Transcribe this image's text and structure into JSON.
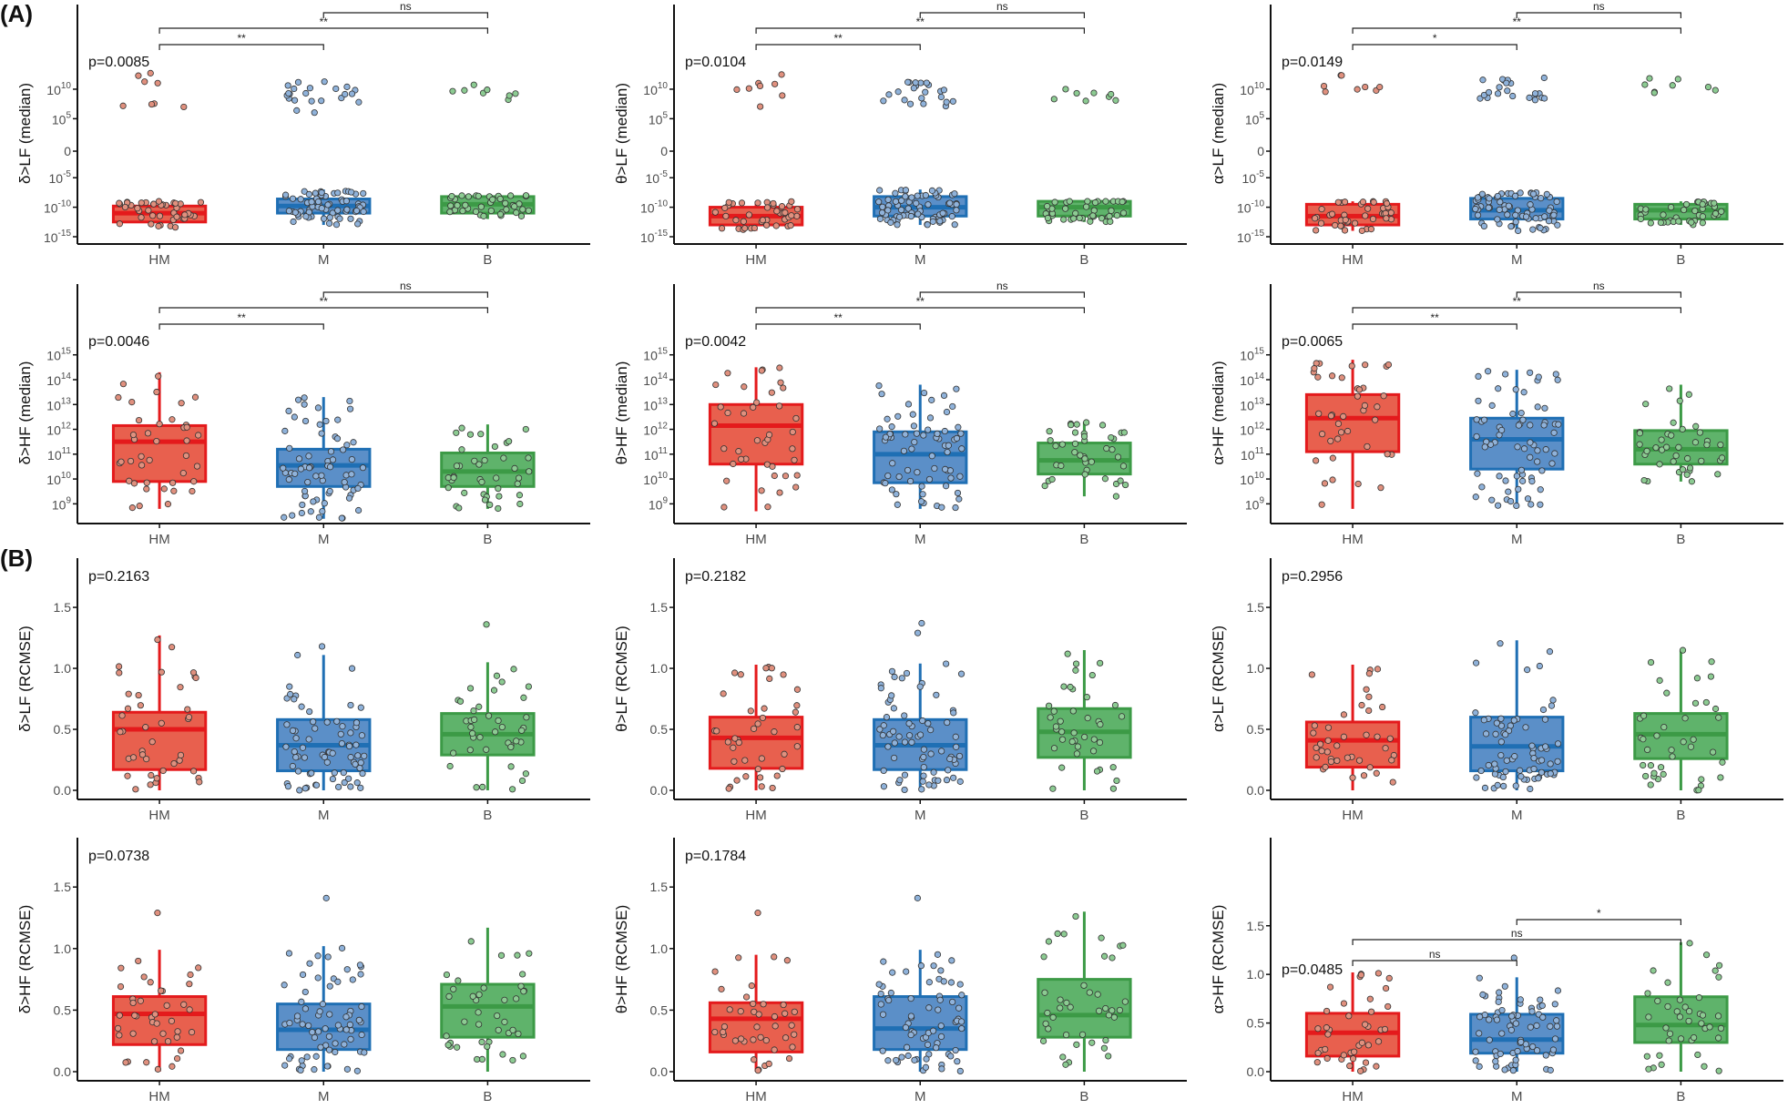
{
  "figure": {
    "section_labels": [
      "(A)",
      "(B)"
    ]
  },
  "colors": {
    "HM": {
      "fill": "#E8604E",
      "line": "#E41A1C",
      "dot": "#E0907E"
    },
    "M": {
      "fill": "#5B8FC8",
      "line": "#1F6FB4",
      "dot": "#8FB2DA"
    },
    "B": {
      "fill": "#5FB36B",
      "line": "#3C9A46",
      "dot": "#8CCB92"
    },
    "axis": "#111111",
    "tick_label": "#4D4D4D"
  },
  "chart_data": [
    {
      "type": "box",
      "section": "A",
      "ylabel": "δ>LF (median)",
      "scale": "symlog-decades",
      "yticks": [
        "10^-15",
        "10^-10",
        "10^-5",
        "0",
        "10^5",
        "10^10"
      ],
      "categories": [
        "HM",
        "M",
        "B"
      ],
      "pvalue": "p=0.0085",
      "boxes": [
        {
          "group": "HM",
          "q1": -12.5,
          "median": -11,
          "q3": -9.8,
          "wlo": -13.5,
          "whi": -9
        },
        {
          "group": "M",
          "q1": -11,
          "median": -9.8,
          "q3": -8.6,
          "wlo": -13,
          "whi": -7
        },
        {
          "group": "B",
          "q1": -11,
          "median": -9.5,
          "q3": -8.2,
          "wlo": -12,
          "whi": -8
        }
      ],
      "outliers": [
        {
          "group": "HM",
          "range": [
            6,
            13
          ]
        },
        {
          "group": "M",
          "range": [
            6,
            11.5
          ]
        },
        {
          "group": "B",
          "range": [
            8,
            11
          ]
        }
      ],
      "comparisons": [
        {
          "pair": [
            "HM",
            "M"
          ],
          "label": "**"
        },
        {
          "pair": [
            "HM",
            "B"
          ],
          "label": "**"
        },
        {
          "pair": [
            "M",
            "B"
          ],
          "label": "ns"
        }
      ]
    },
    {
      "type": "box",
      "section": "A",
      "ylabel": "θ>LF (median)",
      "scale": "symlog-decades",
      "yticks": [
        "10^-15",
        "10^-10",
        "10^-5",
        "0",
        "10^5",
        "10^10"
      ],
      "categories": [
        "HM",
        "M",
        "B"
      ],
      "pvalue": "p=0.0104",
      "boxes": [
        {
          "group": "HM",
          "q1": -13,
          "median": -11.5,
          "q3": -10,
          "wlo": -14,
          "whi": -9
        },
        {
          "group": "M",
          "q1": -11.5,
          "median": -10,
          "q3": -8.2,
          "wlo": -13,
          "whi": -7
        },
        {
          "group": "B",
          "q1": -11.5,
          "median": -10,
          "q3": -9,
          "wlo": -12.5,
          "whi": -9
        }
      ],
      "outliers": [
        {
          "group": "HM",
          "range": [
            7,
            13
          ]
        },
        {
          "group": "M",
          "range": [
            7,
            11.5
          ]
        },
        {
          "group": "B",
          "range": [
            8,
            11
          ]
        }
      ],
      "comparisons": [
        {
          "pair": [
            "HM",
            "M"
          ],
          "label": "**"
        },
        {
          "pair": [
            "HM",
            "B"
          ],
          "label": "**"
        },
        {
          "pair": [
            "M",
            "B"
          ],
          "label": "ns"
        }
      ]
    },
    {
      "type": "box",
      "section": "A",
      "ylabel": "α>LF (median)",
      "scale": "symlog-decades",
      "yticks": [
        "10^-15",
        "10^-10",
        "10^-5",
        "0",
        "10^5",
        "10^10"
      ],
      "categories": [
        "HM",
        "M",
        "B"
      ],
      "pvalue": "p=0.0149",
      "boxes": [
        {
          "group": "HM",
          "q1": -13,
          "median": -11.5,
          "q3": -9.5,
          "wlo": -14,
          "whi": -9
        },
        {
          "group": "M",
          "q1": -12,
          "median": -10.5,
          "q3": -8.5,
          "wlo": -14,
          "whi": -7.5
        },
        {
          "group": "B",
          "q1": -12,
          "median": -10.5,
          "q3": -9.5,
          "wlo": -13,
          "whi": -9
        }
      ],
      "outliers": [
        {
          "group": "HM",
          "range": [
            9,
            12.5
          ]
        },
        {
          "group": "M",
          "range": [
            8,
            12
          ]
        },
        {
          "group": "B",
          "range": [
            9,
            12
          ]
        }
      ],
      "comparisons": [
        {
          "pair": [
            "HM",
            "M"
          ],
          "label": "*"
        },
        {
          "pair": [
            "HM",
            "B"
          ],
          "label": "**"
        },
        {
          "pair": [
            "M",
            "B"
          ],
          "label": "ns"
        }
      ]
    },
    {
      "type": "box",
      "section": "A",
      "ylabel": "δ>HF (median)",
      "scale": "log",
      "yticks": [
        "10^9",
        "10^10",
        "10^11",
        "10^12",
        "10^13",
        "10^14",
        "10^15"
      ],
      "categories": [
        "HM",
        "M",
        "B"
      ],
      "pvalue": "p=0.0046",
      "boxes": [
        {
          "group": "HM",
          "q1": 9.9,
          "median": 11.5,
          "q3": 12.15,
          "wlo": 8.8,
          "whi": 14.3
        },
        {
          "group": "M",
          "q1": 9.7,
          "median": 10.55,
          "q3": 11.2,
          "wlo": 8.4,
          "whi": 13.3
        },
        {
          "group": "B",
          "q1": 9.7,
          "median": 10.3,
          "q3": 11.05,
          "wlo": 8.8,
          "whi": 12.2
        }
      ],
      "outliers": [],
      "comparisons": [
        {
          "pair": [
            "HM",
            "M"
          ],
          "label": "**"
        },
        {
          "pair": [
            "HM",
            "B"
          ],
          "label": "**"
        },
        {
          "pair": [
            "M",
            "B"
          ],
          "label": "ns"
        }
      ]
    },
    {
      "type": "box",
      "section": "A",
      "ylabel": "θ>HF (median)",
      "scale": "log",
      "yticks": [
        "10^9",
        "10^10",
        "10^11",
        "10^12",
        "10^13",
        "10^14",
        "10^15"
      ],
      "categories": [
        "HM",
        "M",
        "B"
      ],
      "pvalue": "p=0.0042",
      "boxes": [
        {
          "group": "HM",
          "q1": 10.6,
          "median": 12.15,
          "q3": 13.0,
          "wlo": 8.7,
          "whi": 14.5
        },
        {
          "group": "M",
          "q1": 9.85,
          "median": 11.0,
          "q3": 11.9,
          "wlo": 8.8,
          "whi": 13.8
        },
        {
          "group": "B",
          "q1": 10.2,
          "median": 10.75,
          "q3": 11.45,
          "wlo": 9.3,
          "whi": 12.3
        }
      ],
      "outliers": [],
      "comparisons": [
        {
          "pair": [
            "HM",
            "M"
          ],
          "label": "**"
        },
        {
          "pair": [
            "HM",
            "B"
          ],
          "label": "**"
        },
        {
          "pair": [
            "M",
            "B"
          ],
          "label": "ns"
        }
      ]
    },
    {
      "type": "box",
      "section": "A",
      "ylabel": "α>HF (median)",
      "scale": "log",
      "yticks": [
        "10^9",
        "10^10",
        "10^11",
        "10^12",
        "10^13",
        "10^14",
        "10^15"
      ],
      "categories": [
        "HM",
        "M",
        "B"
      ],
      "pvalue": "p=0.0065",
      "boxes": [
        {
          "group": "HM",
          "q1": 11.1,
          "median": 12.45,
          "q3": 13.4,
          "wlo": 8.8,
          "whi": 14.8
        },
        {
          "group": "M",
          "q1": 10.4,
          "median": 11.6,
          "q3": 12.45,
          "wlo": 8.9,
          "whi": 14.4
        },
        {
          "group": "B",
          "q1": 10.6,
          "median": 11.2,
          "q3": 11.95,
          "wlo": 9.9,
          "whi": 13.8
        }
      ],
      "outliers": [],
      "comparisons": [
        {
          "pair": [
            "HM",
            "M"
          ],
          "label": "**"
        },
        {
          "pair": [
            "HM",
            "B"
          ],
          "label": "**"
        },
        {
          "pair": [
            "M",
            "B"
          ],
          "label": "ns"
        }
      ]
    },
    {
      "type": "box",
      "section": "B",
      "ylabel": "δ>LF (RCMSE)",
      "scale": "linear",
      "yticks": [
        "0.0",
        "0.5",
        "1.0",
        "1.5"
      ],
      "ylim": [
        0,
        1.5
      ],
      "categories": [
        "HM",
        "M",
        "B"
      ],
      "pvalue": "p=0.2163",
      "boxes": [
        {
          "group": "HM",
          "q1": 0.17,
          "median": 0.5,
          "q3": 0.64,
          "wlo": 0.0,
          "whi": 1.27
        },
        {
          "group": "M",
          "q1": 0.16,
          "median": 0.37,
          "q3": 0.58,
          "wlo": 0.0,
          "whi": 1.11
        },
        {
          "group": "B",
          "q1": 0.29,
          "median": 0.46,
          "q3": 0.63,
          "wlo": 0.0,
          "whi": 1.05
        }
      ],
      "outliers": [
        {
          "group": "M",
          "values": [
            1.18
          ]
        },
        {
          "group": "B",
          "values": [
            1.36
          ]
        }
      ],
      "comparisons": []
    },
    {
      "type": "box",
      "section": "B",
      "ylabel": "θ>LF (RCMSE)",
      "scale": "linear",
      "yticks": [
        "0.0",
        "0.5",
        "1.0",
        "1.5"
      ],
      "ylim": [
        0,
        1.5
      ],
      "categories": [
        "HM",
        "M",
        "B"
      ],
      "pvalue": "p=0.2182",
      "boxes": [
        {
          "group": "HM",
          "q1": 0.18,
          "median": 0.43,
          "q3": 0.6,
          "wlo": 0.0,
          "whi": 1.03
        },
        {
          "group": "M",
          "q1": 0.17,
          "median": 0.37,
          "q3": 0.58,
          "wlo": 0.0,
          "whi": 1.04
        },
        {
          "group": "B",
          "q1": 0.27,
          "median": 0.48,
          "q3": 0.67,
          "wlo": 0.0,
          "whi": 1.15
        }
      ],
      "outliers": [
        {
          "group": "M",
          "values": [
            1.29,
            1.37
          ]
        }
      ],
      "comparisons": []
    },
    {
      "type": "box",
      "section": "B",
      "ylabel": "α>LF (RCMSE)",
      "scale": "linear",
      "yticks": [
        "0.0",
        "0.5",
        "1.0",
        "1.5"
      ],
      "ylim": [
        0,
        1.5
      ],
      "categories": [
        "HM",
        "M",
        "B"
      ],
      "pvalue": "p=0.2956",
      "boxes": [
        {
          "group": "HM",
          "q1": 0.19,
          "median": 0.41,
          "q3": 0.56,
          "wlo": 0.0,
          "whi": 1.03
        },
        {
          "group": "M",
          "q1": 0.16,
          "median": 0.36,
          "q3": 0.6,
          "wlo": 0.0,
          "whi": 1.23
        },
        {
          "group": "B",
          "q1": 0.26,
          "median": 0.46,
          "q3": 0.63,
          "wlo": 0.0,
          "whi": 1.15
        }
      ],
      "outliers": [],
      "comparisons": []
    },
    {
      "type": "box",
      "section": "B",
      "ylabel": "δ>HF (RCMSE)",
      "scale": "linear",
      "yticks": [
        "0.0",
        "0.5",
        "1.0",
        "1.5"
      ],
      "ylim": [
        0,
        1.5
      ],
      "categories": [
        "HM",
        "M",
        "B"
      ],
      "pvalue": "p=0.0738",
      "boxes": [
        {
          "group": "HM",
          "q1": 0.22,
          "median": 0.47,
          "q3": 0.61,
          "wlo": 0.0,
          "whi": 0.99
        },
        {
          "group": "M",
          "q1": 0.18,
          "median": 0.34,
          "q3": 0.55,
          "wlo": 0.0,
          "whi": 1.02
        },
        {
          "group": "B",
          "q1": 0.28,
          "median": 0.53,
          "q3": 0.71,
          "wlo": 0.0,
          "whi": 1.17
        }
      ],
      "outliers": [
        {
          "group": "HM",
          "values": [
            1.29
          ]
        },
        {
          "group": "M",
          "values": [
            1.41
          ]
        }
      ],
      "comparisons": []
    },
    {
      "type": "box",
      "section": "B",
      "ylabel": "θ>HF (RCMSE)",
      "scale": "linear",
      "yticks": [
        "0.0",
        "0.5",
        "1.0",
        "1.5"
      ],
      "ylim": [
        0,
        1.5
      ],
      "categories": [
        "HM",
        "M",
        "B"
      ],
      "pvalue": "p=0.1784",
      "boxes": [
        {
          "group": "HM",
          "q1": 0.16,
          "median": 0.43,
          "q3": 0.56,
          "wlo": 0.0,
          "whi": 0.95
        },
        {
          "group": "M",
          "q1": 0.18,
          "median": 0.35,
          "q3": 0.61,
          "wlo": 0.0,
          "whi": 0.99
        },
        {
          "group": "B",
          "q1": 0.28,
          "median": 0.46,
          "q3": 0.75,
          "wlo": 0.0,
          "whi": 1.3
        }
      ],
      "outliers": [
        {
          "group": "HM",
          "values": [
            1.29
          ]
        },
        {
          "group": "M",
          "values": [
            1.41
          ]
        }
      ],
      "comparisons": []
    },
    {
      "type": "box",
      "section": "B",
      "ylabel": "α>HF (RCMSE)",
      "scale": "linear",
      "yticks": [
        "0.0",
        "0.5",
        "1.0",
        "1.5"
      ],
      "ylim": [
        0,
        2.05
      ],
      "categories": [
        "HM",
        "M",
        "B"
      ],
      "pvalue": "p=0.0485",
      "boxes": [
        {
          "group": "HM",
          "q1": 0.16,
          "median": 0.4,
          "q3": 0.6,
          "wlo": 0.0,
          "whi": 1.02
        },
        {
          "group": "M",
          "q1": 0.19,
          "median": 0.33,
          "q3": 0.59,
          "wlo": 0.0,
          "whi": 0.97
        },
        {
          "group": "B",
          "q1": 0.3,
          "median": 0.48,
          "q3": 0.77,
          "wlo": 0.0,
          "whi": 1.33
        }
      ],
      "outliers": [
        {
          "group": "M",
          "values": [
            1.17
          ]
        }
      ],
      "comparisons": [
        {
          "pair": [
            "HM",
            "M"
          ],
          "label": "ns"
        },
        {
          "pair": [
            "HM",
            "B"
          ],
          "label": "ns"
        },
        {
          "pair": [
            "M",
            "B"
          ],
          "label": "*"
        }
      ]
    }
  ]
}
